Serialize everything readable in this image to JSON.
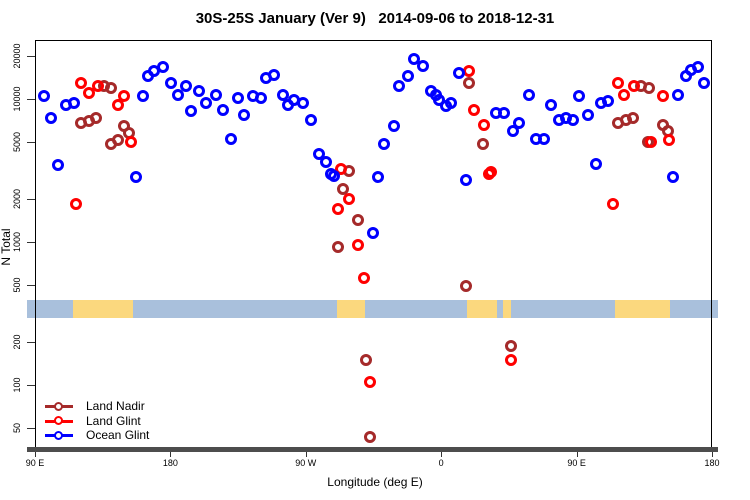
{
  "title": "30S-25S January (Ver 9)   2014-09-06 to 2018-12-31",
  "colors": {
    "land_nadir": "#A52A2A",
    "land_glint": "#FF0000",
    "ocean_glint": "#0000FF",
    "band_ocean": "#A9C0DC",
    "band_land": "#FBD87E",
    "axis_bar": "#4D4D4D",
    "tick": "#333333"
  },
  "legend": {
    "items": [
      {
        "label": "Land Nadir",
        "color": "#A52A2A"
      },
      {
        "label": "Land Glint",
        "color": "#FF0000"
      },
      {
        "label": "Ocean Glint",
        "color": "#0000FF"
      }
    ]
  },
  "band": {
    "meaning": "land(yellow)/ocean(blue) strip along longitude",
    "patches_deg": [
      [
        25.0,
        65.1
      ],
      [
        200.8,
        219.4
      ],
      [
        287.2,
        307.1
      ],
      [
        311.1,
        316.4
      ],
      [
        385.6,
        422.1
      ]
    ]
  },
  "chart_data": {
    "type": "scatter",
    "title": "30S-25S January (Ver 9)   2014-09-06 to 2018-12-31",
    "xlabel": "Longitude (deg E)",
    "ylabel": "N Total",
    "x_axis": {
      "note": "degrees measured eastward from left edge (90E); axis wraps 90E>180>90W>0>90E>180",
      "range_deg": [
        0,
        450
      ],
      "ticks": [
        {
          "deg": 0,
          "label": "90 E"
        },
        {
          "deg": 90,
          "label": "180"
        },
        {
          "deg": 180,
          "label": "90 W"
        },
        {
          "deg": 270,
          "label": "0"
        },
        {
          "deg": 360,
          "label": "90 E"
        },
        {
          "deg": 450,
          "label": "180"
        }
      ]
    },
    "y_axis": {
      "scale": "log",
      "ticks": [
        50,
        100,
        200,
        500,
        1000,
        2000,
        5000,
        10000,
        20000
      ],
      "range": [
        33,
        24000
      ]
    },
    "series": [
      {
        "name": "Land Nadir",
        "color": "#A52A2A",
        "points": [
          [
            29.9,
            6940
          ],
          [
            35.2,
            7160
          ],
          [
            39.9,
            7520
          ],
          [
            45.2,
            12500
          ],
          [
            49.9,
            12100
          ],
          [
            49.9,
            4890
          ],
          [
            54.5,
            5210
          ],
          [
            58.5,
            6620
          ],
          [
            61.8,
            5920
          ],
          [
            200.8,
            940
          ],
          [
            204.1,
            2390
          ],
          [
            208.1,
            3190
          ],
          [
            214.1,
            1440
          ],
          [
            219.4,
            153
          ],
          [
            222,
            44
          ],
          [
            285.9,
            497
          ],
          [
            287.9,
            13100
          ],
          [
            297.1,
            4890
          ],
          [
            315.8,
            189
          ],
          [
            386.9,
            6940
          ],
          [
            392.2,
            7280
          ],
          [
            396.9,
            7520
          ],
          [
            402.2,
            12500
          ],
          [
            406.9,
            5050
          ],
          [
            407.5,
            12100
          ],
          [
            416.9,
            6730
          ],
          [
            420.2,
            6110
          ]
        ]
      },
      {
        "name": "Land Glint",
        "color": "#FF0000",
        "points": [
          [
            26.6,
            1860
          ],
          [
            29.9,
            13100
          ],
          [
            35.2,
            11200
          ],
          [
            41.2,
            12500
          ],
          [
            54.5,
            9240
          ],
          [
            58.5,
            10700
          ],
          [
            63.2,
            5050
          ],
          [
            200.8,
            1740
          ],
          [
            202.8,
            3290
          ],
          [
            208.1,
            2040
          ],
          [
            214.1,
            970
          ],
          [
            218.1,
            573
          ],
          [
            222,
            107
          ],
          [
            287.9,
            15900
          ],
          [
            291.2,
            8530
          ],
          [
            297.8,
            6730
          ],
          [
            301.1,
            3040
          ],
          [
            302.5,
            3140
          ],
          [
            315.8,
            151
          ],
          [
            383.6,
            1860
          ],
          [
            386.9,
            13100
          ],
          [
            390.9,
            10800
          ],
          [
            397.6,
            12500
          ],
          [
            408.9,
            5050
          ],
          [
            416.9,
            10700
          ],
          [
            420.8,
            5210
          ]
        ]
      },
      {
        "name": "Ocean Glint",
        "color": "#0000FF",
        "points": [
          [
            5.3,
            10700
          ],
          [
            10,
            7520
          ],
          [
            14.6,
            3510
          ],
          [
            19.9,
            9240
          ],
          [
            25.3,
            9530
          ],
          [
            66.5,
            2900
          ],
          [
            71.1,
            10700
          ],
          [
            74.5,
            14700
          ],
          [
            78.4,
            15900
          ],
          [
            84.4,
            17100
          ],
          [
            89.7,
            13100
          ],
          [
            94.4,
            10800
          ],
          [
            99.7,
            12500
          ],
          [
            103,
            8400
          ],
          [
            108.3,
            11500
          ],
          [
            113,
            9530
          ],
          [
            119.6,
            10800
          ],
          [
            124.3,
            8530
          ],
          [
            129.6,
            5300
          ],
          [
            134.3,
            10300
          ],
          [
            138.3,
            7890
          ],
          [
            144.3,
            10700
          ],
          [
            149.6,
            10300
          ],
          [
            152.9,
            14200
          ],
          [
            158.2,
            14900
          ],
          [
            164.2,
            10800
          ],
          [
            167.5,
            9240
          ],
          [
            171.5,
            10000
          ],
          [
            177.5,
            9530
          ],
          [
            182.8,
            7280
          ],
          [
            188.1,
            4180
          ],
          [
            192.8,
            3680
          ],
          [
            196.1,
            3040
          ],
          [
            198.1,
            2940
          ],
          [
            224,
            1170
          ],
          [
            227.3,
            2900
          ],
          [
            231.3,
            4890
          ],
          [
            238,
            6620
          ],
          [
            241.3,
            12500
          ],
          [
            247.3,
            14700
          ],
          [
            251.3,
            19500
          ],
          [
            257.3,
            17400
          ],
          [
            262.6,
            11500
          ],
          [
            265.9,
            10800
          ],
          [
            267.9,
            10000
          ],
          [
            272.6,
            9100
          ],
          [
            275.9,
            9530
          ],
          [
            281.2,
            15400
          ],
          [
            285.9,
            2760
          ],
          [
            305.8,
            8130
          ],
          [
            311.1,
            8130
          ],
          [
            317.1,
            6110
          ],
          [
            321.1,
            6940
          ],
          [
            327.8,
            10800
          ],
          [
            332.4,
            5300
          ],
          [
            337.7,
            5300
          ],
          [
            342.4,
            9240
          ],
          [
            347.7,
            7280
          ],
          [
            352.4,
            7520
          ],
          [
            357,
            7280
          ],
          [
            361,
            10700
          ],
          [
            367,
            7890
          ],
          [
            372.3,
            3560
          ],
          [
            375.6,
            9530
          ],
          [
            380.3,
            9840
          ],
          [
            423.5,
            2900
          ],
          [
            426.8,
            10800
          ],
          [
            432.1,
            14700
          ],
          [
            435.5,
            16100
          ],
          [
            440.1,
            17100
          ],
          [
            444.1,
            13100
          ]
        ]
      }
    ]
  }
}
